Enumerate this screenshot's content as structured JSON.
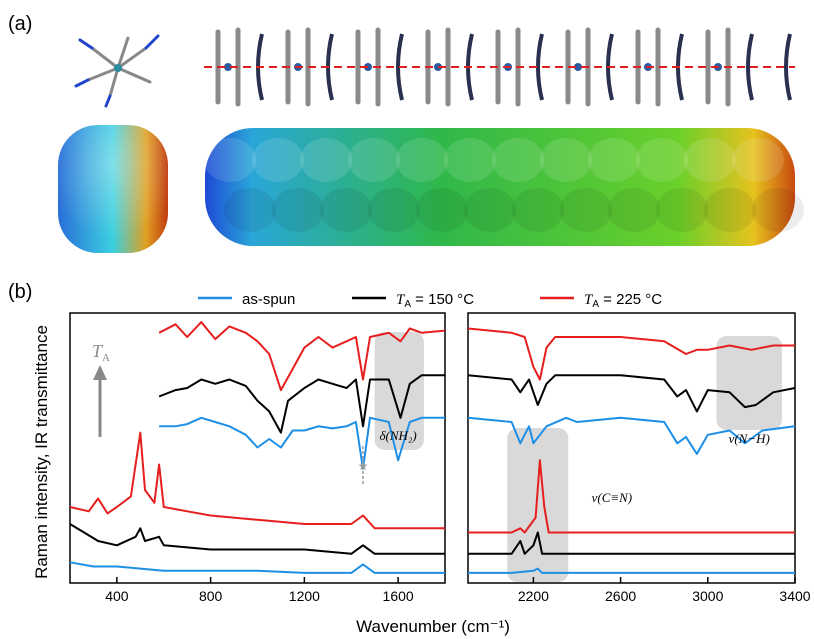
{
  "panel_a_label": "(a)",
  "panel_b_label": "(b)",
  "colors": {
    "as_spun": "#1e8fe6",
    "ta150": "#000000",
    "ta225": "#e61e1e",
    "shade": "#d9d9d9",
    "dashed": "#e02020"
  },
  "chart_data": {
    "type": "line",
    "xlabel": "Wavenumber (cm⁻¹)",
    "ylabel": "Raman intensity, IR transmittance",
    "legend": [
      {
        "name": "as-spun"
      },
      {
        "name": "T_A = 150 °C",
        "prefix": "T",
        "sub": "A",
        "suffix": " = 150 °C"
      },
      {
        "name": "T_A = 225 °C",
        "prefix": "T",
        "sub": "A",
        "suffix": " = 225 °C"
      }
    ],
    "legend_position": "top",
    "arrow_label": {
      "main": "T",
      "sub": "A"
    },
    "panels": [
      {
        "xlim": [
          200,
          1800
        ],
        "xticks": [
          400,
          800,
          1200,
          1600
        ],
        "annotations": [
          {
            "text": "δ(NH₂)"
          },
          {
            "text": "★"
          }
        ],
        "ir": {
          "ta225": [
            [
              580,
              0.82
            ],
            [
              650,
              0.86
            ],
            [
              700,
              0.8
            ],
            [
              760,
              0.87
            ],
            [
              820,
              0.79
            ],
            [
              880,
              0.85
            ],
            [
              950,
              0.82
            ],
            [
              1000,
              0.78
            ],
            [
              1050,
              0.72
            ],
            [
              1100,
              0.55
            ],
            [
              1150,
              0.65
            ],
            [
              1200,
              0.75
            ],
            [
              1260,
              0.8
            ],
            [
              1320,
              0.75
            ],
            [
              1380,
              0.78
            ],
            [
              1420,
              0.8
            ],
            [
              1450,
              0.6
            ],
            [
              1480,
              0.8
            ],
            [
              1560,
              0.82
            ],
            [
              1610,
              0.78
            ],
            [
              1650,
              0.84
            ],
            [
              1700,
              0.82
            ],
            [
              1800,
              0.83
            ]
          ],
          "ta150": [
            [
              580,
              0.52
            ],
            [
              650,
              0.55
            ],
            [
              700,
              0.56
            ],
            [
              760,
              0.6
            ],
            [
              820,
              0.58
            ],
            [
              880,
              0.6
            ],
            [
              950,
              0.57
            ],
            [
              1000,
              0.5
            ],
            [
              1050,
              0.45
            ],
            [
              1100,
              0.35
            ],
            [
              1130,
              0.5
            ],
            [
              1200,
              0.56
            ],
            [
              1260,
              0.6
            ],
            [
              1320,
              0.58
            ],
            [
              1380,
              0.56
            ],
            [
              1420,
              0.6
            ],
            [
              1450,
              0.38
            ],
            [
              1480,
              0.6
            ],
            [
              1560,
              0.6
            ],
            [
              1610,
              0.42
            ],
            [
              1650,
              0.58
            ],
            [
              1700,
              0.62
            ],
            [
              1800,
              0.62
            ]
          ],
          "as_spun": [
            [
              580,
              0.38
            ],
            [
              650,
              0.38
            ],
            [
              700,
              0.39
            ],
            [
              760,
              0.42
            ],
            [
              820,
              0.4
            ],
            [
              880,
              0.38
            ],
            [
              950,
              0.34
            ],
            [
              1000,
              0.28
            ],
            [
              1050,
              0.32
            ],
            [
              1100,
              0.28
            ],
            [
              1150,
              0.36
            ],
            [
              1200,
              0.36
            ],
            [
              1260,
              0.38
            ],
            [
              1320,
              0.37
            ],
            [
              1380,
              0.38
            ],
            [
              1420,
              0.4
            ],
            [
              1450,
              0.18
            ],
            [
              1480,
              0.42
            ],
            [
              1560,
              0.4
            ],
            [
              1600,
              0.22
            ],
            [
              1650,
              0.4
            ],
            [
              1700,
              0.42
            ],
            [
              1800,
              0.42
            ]
          ]
        },
        "raman": {
          "ta225": [
            [
              200,
              0.0
            ],
            [
              280,
              -0.02
            ],
            [
              320,
              0.04
            ],
            [
              360,
              -0.03
            ],
            [
              400,
              0.0
            ],
            [
              460,
              0.05
            ],
            [
              500,
              0.35
            ],
            [
              520,
              0.08
            ],
            [
              560,
              0.02
            ],
            [
              580,
              0.2
            ],
            [
              600,
              0.0
            ],
            [
              700,
              -0.02
            ],
            [
              800,
              -0.04
            ],
            [
              1000,
              -0.06
            ],
            [
              1200,
              -0.08
            ],
            [
              1400,
              -0.08
            ],
            [
              1450,
              -0.04
            ],
            [
              1500,
              -0.1
            ],
            [
              1800,
              -0.1
            ]
          ],
          "ta150": [
            [
              200,
              -0.08
            ],
            [
              260,
              -0.12
            ],
            [
              320,
              -0.16
            ],
            [
              400,
              -0.18
            ],
            [
              480,
              -0.14
            ],
            [
              500,
              -0.1
            ],
            [
              520,
              -0.16
            ],
            [
              580,
              -0.14
            ],
            [
              600,
              -0.18
            ],
            [
              800,
              -0.2
            ],
            [
              1000,
              -0.2
            ],
            [
              1200,
              -0.2
            ],
            [
              1400,
              -0.22
            ],
            [
              1450,
              -0.18
            ],
            [
              1500,
              -0.22
            ],
            [
              1800,
              -0.22
            ]
          ],
          "as_spun": [
            [
              200,
              -0.26
            ],
            [
              300,
              -0.28
            ],
            [
              400,
              -0.28
            ],
            [
              500,
              -0.29
            ],
            [
              600,
              -0.3
            ],
            [
              800,
              -0.3
            ],
            [
              1000,
              -0.3
            ],
            [
              1200,
              -0.31
            ],
            [
              1400,
              -0.31
            ],
            [
              1450,
              -0.27
            ],
            [
              1500,
              -0.31
            ],
            [
              1800,
              -0.31
            ]
          ]
        }
      },
      {
        "xlim": [
          1900,
          3400
        ],
        "xticks": [
          2200,
          2600,
          3000,
          3400
        ],
        "annotations": [
          {
            "text": "ν(C≡N)"
          },
          {
            "text": "ν(N−H)"
          }
        ],
        "ir": {
          "ta225": [
            [
              1900,
              0.84
            ],
            [
              2100,
              0.82
            ],
            [
              2160,
              0.8
            ],
            [
              2200,
              0.66
            ],
            [
              2230,
              0.6
            ],
            [
              2260,
              0.75
            ],
            [
              2300,
              0.8
            ],
            [
              2400,
              0.8
            ],
            [
              2600,
              0.8
            ],
            [
              2800,
              0.78
            ],
            [
              2900,
              0.72
            ],
            [
              2950,
              0.74
            ],
            [
              3000,
              0.74
            ],
            [
              3100,
              0.76
            ],
            [
              3200,
              0.74
            ],
            [
              3300,
              0.76
            ],
            [
              3400,
              0.76
            ]
          ],
          "ta150": [
            [
              1900,
              0.62
            ],
            [
              2100,
              0.6
            ],
            [
              2140,
              0.54
            ],
            [
              2180,
              0.6
            ],
            [
              2220,
              0.48
            ],
            [
              2260,
              0.58
            ],
            [
              2300,
              0.62
            ],
            [
              2600,
              0.62
            ],
            [
              2800,
              0.6
            ],
            [
              2860,
              0.52
            ],
            [
              2900,
              0.55
            ],
            [
              2950,
              0.45
            ],
            [
              3000,
              0.55
            ],
            [
              3100,
              0.54
            ],
            [
              3170,
              0.47
            ],
            [
              3220,
              0.48
            ],
            [
              3300,
              0.54
            ],
            [
              3400,
              0.56
            ]
          ],
          "as_spun": [
            [
              1900,
              0.42
            ],
            [
              2100,
              0.4
            ],
            [
              2140,
              0.3
            ],
            [
              2180,
              0.38
            ],
            [
              2200,
              0.3
            ],
            [
              2260,
              0.38
            ],
            [
              2350,
              0.42
            ],
            [
              2400,
              0.4
            ],
            [
              2600,
              0.42
            ],
            [
              2800,
              0.4
            ],
            [
              2860,
              0.3
            ],
            [
              2900,
              0.33
            ],
            [
              2950,
              0.25
            ],
            [
              3000,
              0.34
            ],
            [
              3100,
              0.36
            ],
            [
              3170,
              0.3
            ],
            [
              3250,
              0.36
            ],
            [
              3400,
              0.38
            ]
          ]
        },
        "raman": {
          "ta225": [
            [
              1900,
              -0.12
            ],
            [
              2100,
              -0.12
            ],
            [
              2140,
              -0.1
            ],
            [
              2160,
              -0.12
            ],
            [
              2210,
              -0.05
            ],
            [
              2230,
              0.22
            ],
            [
              2250,
              0.0
            ],
            [
              2270,
              -0.12
            ],
            [
              3400,
              -0.12
            ]
          ],
          "ta150": [
            [
              1900,
              -0.22
            ],
            [
              2100,
              -0.22
            ],
            [
              2140,
              -0.16
            ],
            [
              2160,
              -0.22
            ],
            [
              2200,
              -0.18
            ],
            [
              2220,
              -0.12
            ],
            [
              2240,
              -0.22
            ],
            [
              3400,
              -0.22
            ]
          ],
          "as_spun": [
            [
              1900,
              -0.31
            ],
            [
              2100,
              -0.31
            ],
            [
              2200,
              -0.3
            ],
            [
              2220,
              -0.29
            ],
            [
              2240,
              -0.31
            ],
            [
              3400,
              -0.31
            ]
          ]
        }
      }
    ]
  }
}
